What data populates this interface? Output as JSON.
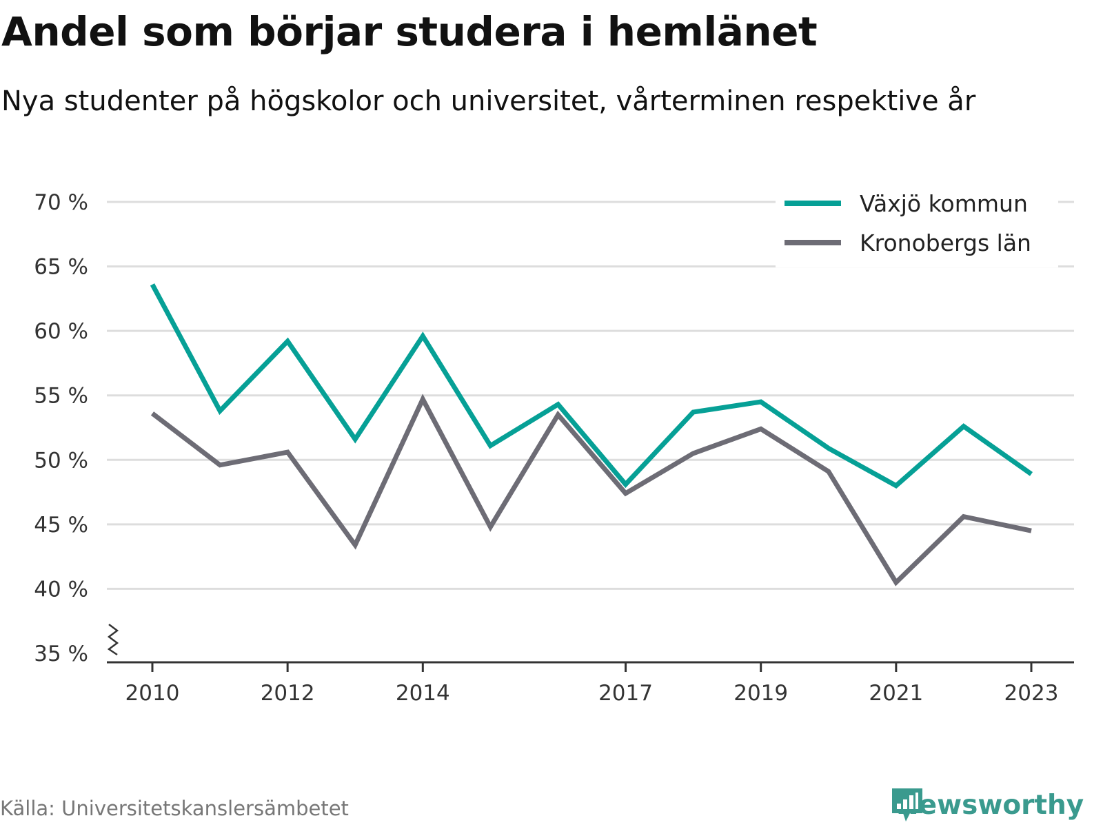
{
  "header": {
    "title": "Andel som börjar studera i hemlänet",
    "subtitle": "Nya studenter på högskolor och universitet, vårterminen respektive år"
  },
  "footer": {
    "source": "Källa: Universitetskanslersämbetet",
    "brand": "Newsworthy",
    "brand_icon": "bar-chart-bubble-icon"
  },
  "colors": {
    "vaxjo": "#06a096",
    "kronoberg": "#6d6c75",
    "grid": "#dddddd",
    "axis": "#333333",
    "brand": "#3a9a8e"
  },
  "chart_data": {
    "type": "line",
    "title": "Andel som börjar studera i hemlänet",
    "subtitle": "Nya studenter på högskolor och universitet, vårterminen respektive år",
    "x": [
      2010,
      2011,
      2012,
      2013,
      2014,
      2015,
      2016,
      2017,
      2018,
      2019,
      2020,
      2021,
      2022,
      2023
    ],
    "x_tick_labels": [
      "2010",
      "2012",
      "2014",
      "2017",
      "2019",
      "2021",
      "2023"
    ],
    "y_tick_labels": [
      "35 %",
      "40 %",
      "45 %",
      "50 %",
      "55 %",
      "60 %",
      "65 %",
      "70 %"
    ],
    "ylim": [
      35,
      70
    ],
    "y_axis_break": true,
    "grid": true,
    "legend_position": "top-right",
    "series": [
      {
        "name": "Växjö kommun",
        "values": [
          63.6,
          53.8,
          59.2,
          51.6,
          59.6,
          51.1,
          54.3,
          48.1,
          53.7,
          54.5,
          50.9,
          48.0,
          52.6,
          48.9
        ]
      },
      {
        "name": "Kronobergs län",
        "values": [
          53.6,
          49.6,
          50.6,
          43.4,
          54.7,
          44.8,
          53.5,
          47.4,
          50.5,
          52.4,
          49.1,
          40.5,
          45.6,
          44.5
        ]
      }
    ]
  }
}
